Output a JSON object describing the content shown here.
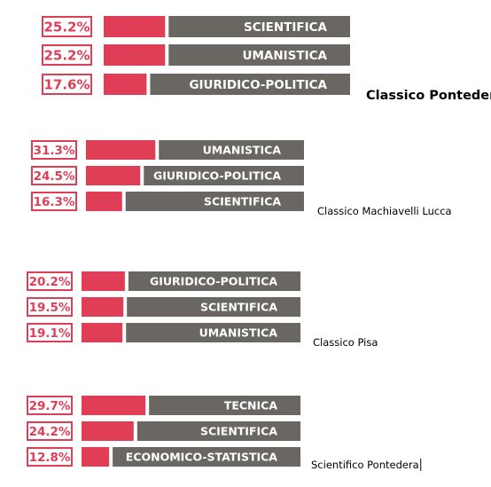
{
  "chart_data": [
    {
      "type": "bar",
      "school": "Classico Pontedera",
      "categories": [
        "SCIENTIFICA",
        "UMANISTICA",
        "GIURIDICO-POLITICA"
      ],
      "values": [
        25.2,
        25.2,
        17.6
      ],
      "labels": [
        "25.2%",
        "25.2%",
        "17.6%"
      ],
      "unit": "%"
    },
    {
      "type": "bar",
      "school": "Classico Machiavelli Lucca",
      "categories": [
        "UMANISTICA",
        "GIURIDICO-POLITICA",
        "SCIENTIFICA"
      ],
      "values": [
        31.3,
        24.5,
        16.3
      ],
      "labels": [
        "31.3%",
        "24.5%",
        "16.3%"
      ],
      "unit": "%"
    },
    {
      "type": "bar",
      "school": "Classico Pisa",
      "categories": [
        "GIURIDICO-POLITICA",
        "SCIENTIFICA",
        "UMANISTICA"
      ],
      "values": [
        20.2,
        19.5,
        19.1
      ],
      "labels": [
        "20.2%",
        "19.5%",
        "19.1%"
      ],
      "unit": "%"
    },
    {
      "type": "bar",
      "school": "Scientifico Pontedera",
      "categories": [
        "TECNICA",
        "SCIENTIFICA",
        "ECONOMICO-STATISTICA"
      ],
      "values": [
        29.7,
        24.2,
        12.8
      ],
      "labels": [
        "29.7%",
        "24.2%",
        "12.8%"
      ],
      "unit": "%"
    }
  ],
  "colors": {
    "accent": "#e03e57",
    "track": "#6a6762",
    "label_text": "#ffffff",
    "background": "#ffffff"
  }
}
